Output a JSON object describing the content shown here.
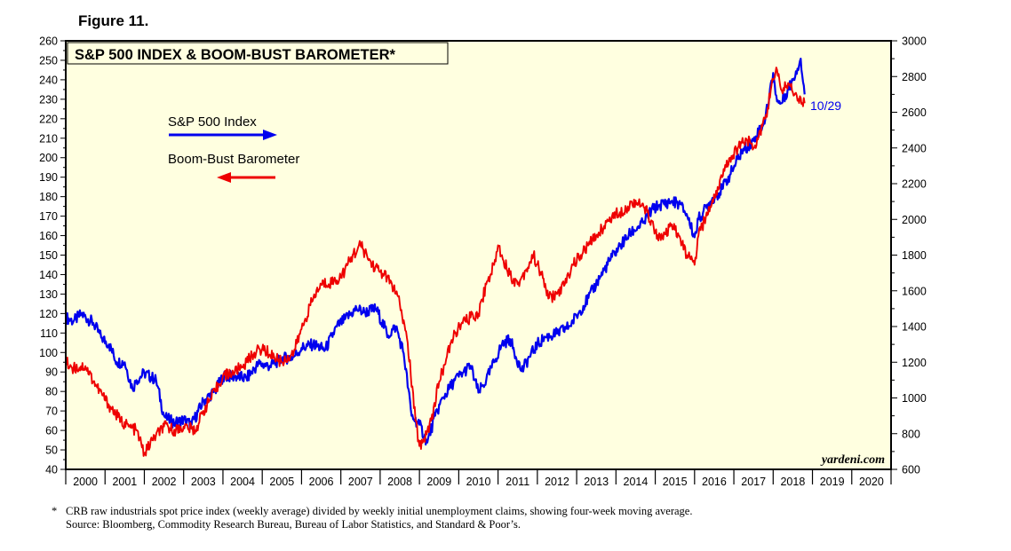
{
  "figure_label": "Figure 11.",
  "footnote": {
    "marker": "*",
    "line1": "CRB raw industrials spot price index (weekly average) divided by weekly initial unemployment claims, showing four-week moving average.",
    "line2": "Source: Bloomberg, Commodity Research Bureau, Bureau of Labor Statistics, and Standard & Poor’s."
  },
  "colors": {
    "sp500": "#0000ee",
    "bbb": "#ee0000",
    "plot_bg": "#ffffe0",
    "frame": "#000000"
  },
  "chart_data": {
    "type": "line",
    "title": "S&P 500 INDEX & BOOM-BUST BAROMETER*",
    "watermark": "yardeni.com",
    "end_label": "10/29",
    "grid": false,
    "x_range": [
      2000,
      2021
    ],
    "x_ticks": [
      "2000",
      "2001",
      "2002",
      "2003",
      "2004",
      "2005",
      "2006",
      "2007",
      "2008",
      "2009",
      "2010",
      "2011",
      "2012",
      "2013",
      "2014",
      "2015",
      "2016",
      "2017",
      "2018",
      "2019",
      "2020"
    ],
    "y_left": {
      "range": [
        40,
        260
      ],
      "ticks": [
        40,
        50,
        60,
        70,
        80,
        90,
        100,
        110,
        120,
        130,
        140,
        150,
        160,
        170,
        180,
        190,
        200,
        210,
        220,
        230,
        240,
        250,
        260
      ]
    },
    "y_right": {
      "range": [
        600,
        3000
      ],
      "ticks": [
        600,
        800,
        1000,
        1200,
        1400,
        1600,
        1800,
        2000,
        2200,
        2400,
        2600,
        2800,
        3000
      ]
    },
    "legend": [
      {
        "name": "S&P 500 Index",
        "arrow": "right"
      },
      {
        "name": "Boom-Bust Barometer",
        "arrow": "left"
      }
    ],
    "series": [
      {
        "name": "S&P 500 Index",
        "axis": "right",
        "x": [
          2000.0,
          2000.2,
          2000.4,
          2000.7,
          2000.9,
          2001.1,
          2001.3,
          2001.5,
          2001.7,
          2001.8,
          2002.0,
          2002.3,
          2002.5,
          2002.6,
          2002.8,
          2003.0,
          2003.2,
          2003.5,
          2003.8,
          2004.0,
          2004.3,
          2004.6,
          2004.9,
          2005.2,
          2005.5,
          2005.8,
          2006.0,
          2006.3,
          2006.6,
          2006.9,
          2007.1,
          2007.4,
          2007.6,
          2007.9,
          2008.2,
          2008.4,
          2008.6,
          2008.8,
          2009.0,
          2009.2,
          2009.4,
          2009.6,
          2009.9,
          2010.1,
          2010.3,
          2010.5,
          2010.7,
          2010.9,
          2011.1,
          2011.3,
          2011.6,
          2011.8,
          2012.0,
          2012.2,
          2012.5,
          2012.8,
          2013.0,
          2013.3,
          2013.6,
          2013.9,
          2014.1,
          2014.4,
          2014.7,
          2014.9,
          2015.1,
          2015.4,
          2015.6,
          2015.8,
          2016.0,
          2016.1,
          2016.4,
          2016.7,
          2016.9,
          2017.2,
          2017.5,
          2017.8,
          2018.0,
          2018.1,
          2018.2,
          2018.5,
          2018.7,
          2018.8
        ],
        "y": [
          1450,
          1430,
          1470,
          1420,
          1340,
          1300,
          1200,
          1200,
          1050,
          1100,
          1140,
          1100,
          900,
          880,
          860,
          880,
          850,
          980,
          1040,
          1120,
          1120,
          1110,
          1190,
          1180,
          1220,
          1230,
          1280,
          1300,
          1270,
          1400,
          1440,
          1500,
          1480,
          1500,
          1350,
          1400,
          1250,
          900,
          850,
          750,
          900,
          1000,
          1100,
          1140,
          1180,
          1030,
          1100,
          1200,
          1300,
          1330,
          1150,
          1230,
          1300,
          1340,
          1360,
          1400,
          1460,
          1560,
          1680,
          1790,
          1850,
          1930,
          1980,
          2050,
          2080,
          2100,
          2090,
          2030,
          1900,
          2000,
          2100,
          2170,
          2250,
          2380,
          2440,
          2560,
          2820,
          2660,
          2650,
          2780,
          2900,
          2700
        ]
      },
      {
        "name": "Boom-Bust Barometer",
        "axis": "left",
        "x": [
          2000.0,
          2000.2,
          2000.5,
          2000.8,
          2001.1,
          2001.4,
          2001.6,
          2001.8,
          2002.0,
          2002.2,
          2002.5,
          2002.8,
          2003.0,
          2003.3,
          2003.5,
          2003.8,
          2004.0,
          2004.3,
          2004.6,
          2004.8,
          2005.0,
          2005.3,
          2005.5,
          2005.8,
          2006.0,
          2006.3,
          2006.5,
          2006.9,
          2007.1,
          2007.3,
          2007.5,
          2007.8,
          2008.1,
          2008.3,
          2008.5,
          2008.7,
          2008.9,
          2009.0,
          2009.1,
          2009.3,
          2009.5,
          2009.7,
          2009.9,
          2010.1,
          2010.3,
          2010.5,
          2010.7,
          2010.9,
          2011.0,
          2011.1,
          2011.3,
          2011.5,
          2011.7,
          2011.9,
          2012.1,
          2012.3,
          2012.5,
          2012.7,
          2012.9,
          2013.1,
          2013.3,
          2013.5,
          2013.7,
          2013.9,
          2014.1,
          2014.3,
          2014.5,
          2014.8,
          2015.0,
          2015.2,
          2015.4,
          2015.6,
          2015.8,
          2016.0,
          2016.1,
          2016.4,
          2016.7,
          2016.9,
          2017.1,
          2017.3,
          2017.5,
          2017.8,
          2018.0,
          2018.1,
          2018.2,
          2018.4,
          2018.6,
          2018.8
        ],
        "y": [
          95,
          92,
          93,
          82,
          73,
          65,
          62,
          60,
          48,
          55,
          62,
          60,
          62,
          60,
          70,
          80,
          88,
          90,
          95,
          100,
          102,
          98,
          95,
          100,
          112,
          128,
          135,
          137,
          142,
          150,
          155,
          145,
          140,
          135,
          125,
          105,
          65,
          52,
          55,
          65,
          85,
          98,
          110,
          115,
          118,
          120,
          135,
          145,
          155,
          150,
          140,
          135,
          142,
          150,
          140,
          128,
          130,
          135,
          145,
          150,
          155,
          160,
          165,
          170,
          172,
          175,
          178,
          172,
          162,
          158,
          165,
          160,
          150,
          145,
          160,
          175,
          190,
          200,
          205,
          210,
          205,
          220,
          240,
          245,
          235,
          238,
          232,
          228
        ]
      }
    ]
  }
}
